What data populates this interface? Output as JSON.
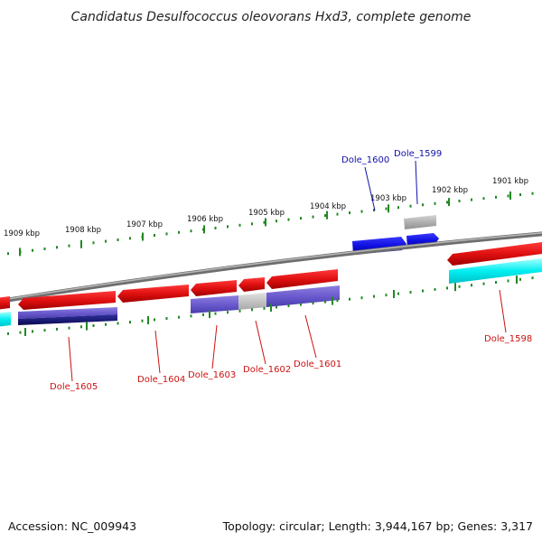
{
  "title": "Candidatus Desulfococcus oleovorans Hxd3, complete genome",
  "footer": {
    "accession": "Accession: NC_009943",
    "summary": "Topology: circular; Length: 3,944,167 bp; Genes: 3,317"
  },
  "colors": {
    "forward_cds": "#dd1111",
    "reverse_cds": "#dd1111",
    "blue_gene": "#1111dd",
    "grey_gene": "#aaaaaa",
    "cyan_ortholog": "#00e5ee",
    "purple_ortholog": "#6a5acd",
    "navy_ortholog": "#1a1a7a",
    "backbone": "#8a8a8a",
    "tick": "#228822",
    "label_red": "#cc1111",
    "label_blue": "#1111aa"
  },
  "scale_ticks": [
    {
      "label": "1909 kbp"
    },
    {
      "label": "1908 kbp"
    },
    {
      "label": "1907 kbp"
    },
    {
      "label": "1906 kbp"
    },
    {
      "label": "1905 kbp"
    },
    {
      "label": "1904 kbp"
    },
    {
      "label": "1903 kbp"
    },
    {
      "label": "1902 kbp"
    },
    {
      "label": "1901 kbp"
    }
  ],
  "gene_labels": [
    {
      "id": "Dole_1600",
      "color": "blue"
    },
    {
      "id": "Dole_1599",
      "color": "blue"
    },
    {
      "id": "Dole_1605",
      "color": "red"
    },
    {
      "id": "Dole_1604",
      "color": "red"
    },
    {
      "id": "Dole_1603",
      "color": "red"
    },
    {
      "id": "Dole_1602",
      "color": "red"
    },
    {
      "id": "Dole_1601",
      "color": "red"
    },
    {
      "id": "Dole_1598",
      "color": "red"
    }
  ]
}
